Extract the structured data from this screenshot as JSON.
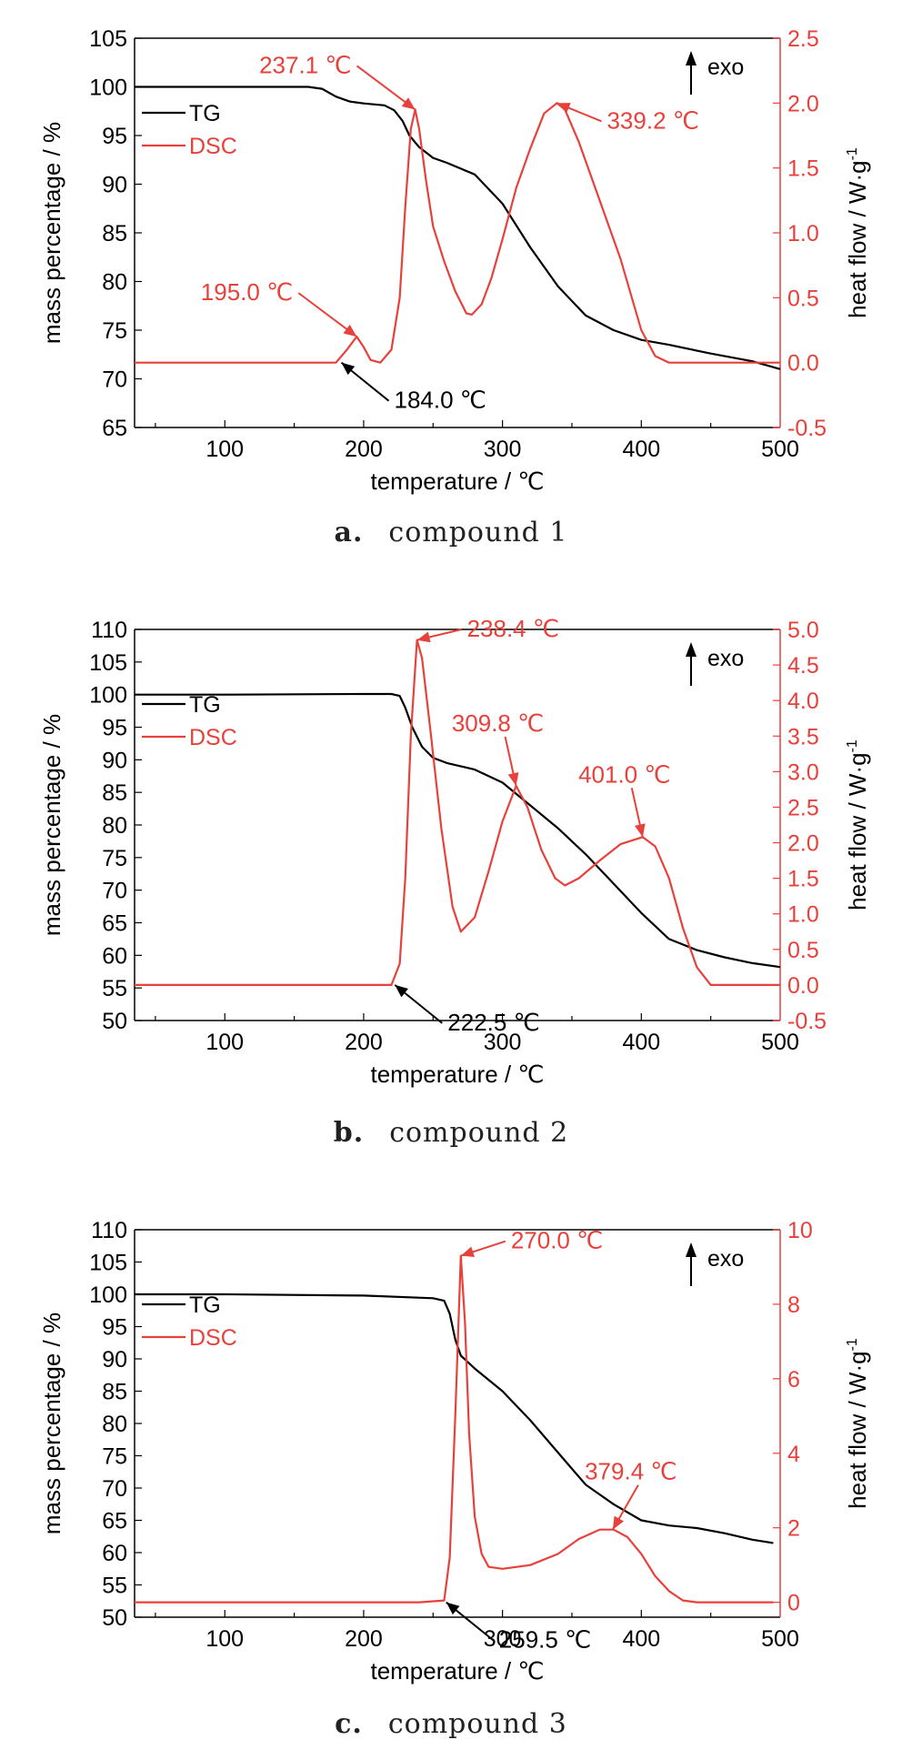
{
  "colors": {
    "tg": "#000000",
    "dsc": "#e8403a",
    "axis": "#000000",
    "rightAxis": "#e8403a"
  },
  "chart_data": [
    {
      "type": "line",
      "caption_letter": "a.",
      "caption_text": "compound 1",
      "xlabel": "temperature / ℃",
      "ylabel": "mass percentage / %",
      "y2label": "heat flow / W·g",
      "y2label_sup": "-1",
      "exo_label": "exo",
      "xlim": [
        35,
        500
      ],
      "ylim": [
        65,
        105
      ],
      "y2lim": [
        -0.5,
        2.5
      ],
      "xticks": [
        100,
        200,
        300,
        400,
        500
      ],
      "yticks": [
        65,
        70,
        75,
        80,
        85,
        90,
        95,
        100,
        105
      ],
      "y2ticks": [
        -0.5,
        0.0,
        0.5,
        1.0,
        1.5,
        2.0,
        2.5
      ],
      "y2tick_labels": [
        "-0.5",
        "0.0",
        "0.5",
        "1.0",
        "1.5",
        "2.0",
        "2.5"
      ],
      "legend": {
        "placement": "top-left",
        "entries": [
          "TG",
          "DSC"
        ]
      },
      "series": [
        {
          "name": "TG",
          "axis": "left",
          "x": [
            35,
            100,
            160,
            170,
            180,
            190,
            200,
            215,
            222,
            228,
            233,
            240,
            250,
            260,
            280,
            300,
            320,
            340,
            360,
            380,
            400,
            420,
            450,
            480,
            500
          ],
          "y": [
            100,
            100,
            100,
            99.8,
            99.0,
            98.5,
            98.3,
            98.1,
            97.6,
            96.5,
            95.0,
            93.8,
            92.7,
            92.2,
            91.0,
            88.0,
            83.5,
            79.5,
            76.5,
            75.0,
            74.0,
            73.5,
            72.6,
            71.8,
            71.0
          ]
        },
        {
          "name": "DSC",
          "axis": "right",
          "x": [
            35,
            100,
            150,
            180,
            188,
            195,
            200,
            205,
            212,
            220,
            226,
            230,
            234,
            237.1,
            240,
            245,
            250,
            258,
            266,
            274,
            278,
            285,
            292,
            300,
            310,
            320,
            330,
            339.2,
            345,
            355,
            370,
            385,
            400,
            410,
            420,
            440,
            480,
            500
          ],
          "y": [
            0.0,
            0.0,
            0.0,
            0.0,
            0.1,
            0.2,
            0.12,
            0.02,
            0.0,
            0.1,
            0.5,
            1.2,
            1.8,
            1.95,
            1.8,
            1.4,
            1.05,
            0.78,
            0.55,
            0.38,
            0.37,
            0.45,
            0.65,
            0.95,
            1.35,
            1.65,
            1.92,
            2.0,
            1.95,
            1.7,
            1.25,
            0.8,
            0.25,
            0.05,
            0.0,
            0.0,
            0.0,
            0.0
          ]
        }
      ],
      "annotations": [
        {
          "text": "237.1 ℃",
          "x": 237.1,
          "y": 1.95,
          "axis": "right",
          "color": "dsc"
        },
        {
          "text": "339.2 ℃",
          "x": 339.2,
          "y": 2.0,
          "axis": "right",
          "color": "dsc"
        },
        {
          "text": "195.0 ℃",
          "x": 195.0,
          "y": 0.2,
          "axis": "right",
          "color": "dsc"
        },
        {
          "text": "184.0 ℃",
          "x": 184.0,
          "y": 0.0,
          "axis": "right",
          "color": "tg"
        }
      ]
    },
    {
      "type": "line",
      "caption_letter": "b.",
      "caption_text": "compound 2",
      "xlabel": "temperature / ℃",
      "ylabel": "mass percentage / %",
      "y2label": "heat flow / W·g",
      "y2label_sup": "-1",
      "exo_label": "exo",
      "xlim": [
        35,
        500
      ],
      "ylim": [
        50,
        110
      ],
      "y2lim": [
        -0.5,
        5.0
      ],
      "xticks": [
        100,
        200,
        300,
        400,
        500
      ],
      "yticks": [
        50,
        55,
        60,
        65,
        70,
        75,
        80,
        85,
        90,
        95,
        100,
        105,
        110
      ],
      "y2ticks": [
        -0.5,
        0.0,
        0.5,
        1.0,
        1.5,
        2.0,
        2.5,
        3.0,
        3.5,
        4.0,
        4.5,
        5.0
      ],
      "y2tick_labels": [
        "-0.5",
        "0.0",
        "0.5",
        "1.0",
        "1.5",
        "2.0",
        "2.5",
        "3.0",
        "3.5",
        "4.0",
        "4.5",
        "5.0"
      ],
      "legend": {
        "placement": "top-left",
        "entries": [
          "TG",
          "DSC"
        ]
      },
      "series": [
        {
          "name": "TG",
          "axis": "left",
          "x": [
            35,
            100,
            200,
            220,
            226,
            230,
            235,
            242,
            250,
            260,
            280,
            300,
            320,
            340,
            360,
            380,
            400,
            420,
            440,
            460,
            480,
            500
          ],
          "y": [
            100,
            100,
            100.1,
            100.1,
            99.8,
            98.0,
            95.0,
            92.0,
            90.3,
            89.5,
            88.5,
            86.5,
            83.0,
            79.5,
            75.5,
            71.0,
            66.5,
            62.5,
            60.8,
            59.7,
            58.8,
            58.2
          ]
        },
        {
          "name": "DSC",
          "axis": "right",
          "x": [
            35,
            100,
            200,
            220,
            226,
            230,
            234,
            238.4,
            242,
            248,
            256,
            264,
            270,
            280,
            290,
            300,
            309.8,
            318,
            328,
            338,
            345,
            355,
            370,
            385,
            401.0,
            410,
            420,
            430,
            440,
            450,
            470,
            500
          ],
          "y": [
            0.0,
            0.0,
            0.0,
            0.0,
            0.3,
            1.5,
            3.5,
            4.85,
            4.6,
            3.6,
            2.2,
            1.1,
            0.75,
            0.95,
            1.6,
            2.3,
            2.8,
            2.5,
            1.9,
            1.5,
            1.4,
            1.5,
            1.75,
            1.98,
            2.08,
            1.95,
            1.5,
            0.8,
            0.25,
            0.0,
            0.0,
            0.0
          ]
        }
      ],
      "annotations": [
        {
          "text": "238.4 ℃",
          "x": 238.4,
          "y": 4.85,
          "axis": "right",
          "color": "dsc"
        },
        {
          "text": "309.8 ℃",
          "x": 309.8,
          "y": 2.8,
          "axis": "right",
          "color": "dsc"
        },
        {
          "text": "401.0 ℃",
          "x": 401.0,
          "y": 2.08,
          "axis": "right",
          "color": "dsc"
        },
        {
          "text": "222.5 ℃",
          "x": 222.5,
          "y": 0.0,
          "axis": "right",
          "color": "tg"
        }
      ]
    },
    {
      "type": "line",
      "caption_letter": "c.",
      "caption_text": "compound 3",
      "xlabel": "temperature / ℃",
      "ylabel": "mass percentage / %",
      "y2label": "heat flow / W·g",
      "y2label_sup": "-1",
      "exo_label": "exo",
      "xlim": [
        35,
        500
      ],
      "ylim": [
        50,
        110
      ],
      "y2lim": [
        -0.4,
        10
      ],
      "xticks": [
        100,
        200,
        300,
        400,
        500
      ],
      "yticks": [
        50,
        55,
        60,
        65,
        70,
        75,
        80,
        85,
        90,
        95,
        100,
        105,
        110
      ],
      "y2ticks": [
        0,
        2,
        4,
        6,
        8,
        10
      ],
      "y2tick_labels": [
        "0",
        "2",
        "4",
        "6",
        "8",
        "10"
      ],
      "legend": {
        "placement": "top-left",
        "entries": [
          "TG",
          "DSC"
        ]
      },
      "series": [
        {
          "name": "TG",
          "axis": "left",
          "x": [
            35,
            100,
            200,
            250,
            258,
            262,
            266,
            270,
            280,
            300,
            320,
            340,
            360,
            380,
            400,
            420,
            440,
            460,
            480,
            495
          ],
          "y": [
            100,
            100,
            99.8,
            99.4,
            99.0,
            97.0,
            93.0,
            90.5,
            88.5,
            85.0,
            80.5,
            75.5,
            70.5,
            67.5,
            65.0,
            64.2,
            63.8,
            63.0,
            62.0,
            61.5
          ]
        },
        {
          "name": "DSC",
          "axis": "right",
          "x": [
            35,
            100,
            200,
            240,
            258,
            262,
            266,
            270.0,
            273,
            276,
            280,
            285,
            290,
            300,
            320,
            340,
            355,
            370,
            380,
            390,
            400,
            410,
            420,
            430,
            440,
            460,
            495
          ],
          "y": [
            0.0,
            0.0,
            0.0,
            0.0,
            0.05,
            1.2,
            5.0,
            9.3,
            7.5,
            4.5,
            2.3,
            1.3,
            0.95,
            0.9,
            1.0,
            1.3,
            1.7,
            1.95,
            1.95,
            1.75,
            1.3,
            0.7,
            0.3,
            0.05,
            0.0,
            0.0,
            0.0
          ]
        }
      ],
      "annotations": [
        {
          "text": "270.0 ℃",
          "x": 270.0,
          "y": 9.3,
          "axis": "right",
          "color": "dsc"
        },
        {
          "text": "379.4 ℃",
          "x": 379.4,
          "y": 1.95,
          "axis": "right",
          "color": "dsc"
        },
        {
          "text": "259.5 ℃",
          "x": 259.5,
          "y": 0.0,
          "axis": "right",
          "color": "tg"
        }
      ]
    }
  ]
}
